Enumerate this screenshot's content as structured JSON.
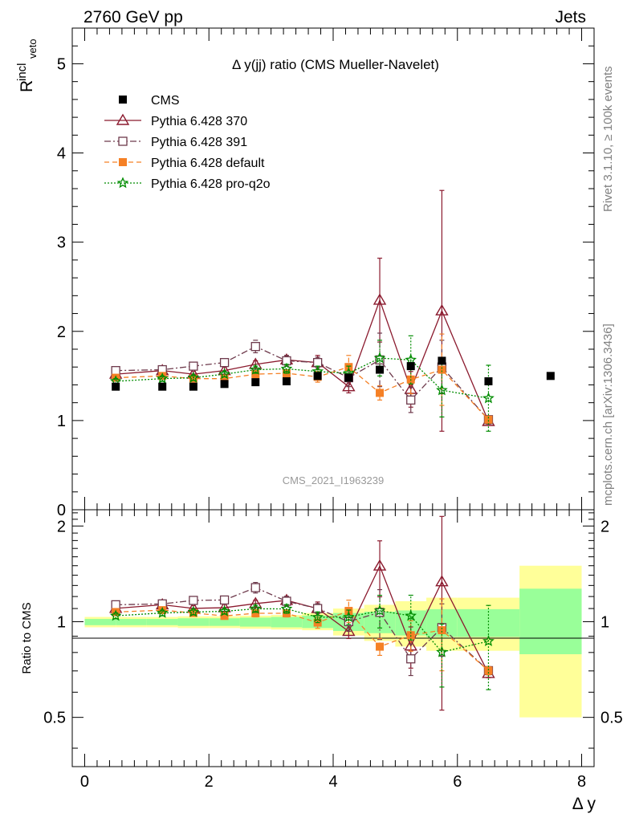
{
  "header": {
    "left": "2760 GeV pp",
    "right": "Jets",
    "side_top": "Rivet 3.1.10, ≥ 100k events",
    "side_bottom": "mcplots.cern.ch [arXiv:1306.3436]"
  },
  "chart_data": {
    "type": "scatter",
    "title": "Δ y(jj) ratio (CMS Mueller-Navelet)",
    "watermark": "CMS_2021_I1963239",
    "xlabel": "Δ y",
    "ylabel": "R^incl_veto",
    "ratio_ylabel": "Ratio to CMS",
    "xlim": [
      -0.2,
      8.2
    ],
    "ylim": [
      0,
      5.4
    ],
    "ratio_ylim": [
      0.35,
      2.25
    ],
    "x_ticks": [
      "0",
      "2",
      "4",
      "6",
      "8"
    ],
    "y_ticks": [
      "0",
      "1",
      "2",
      "3",
      "4",
      "5"
    ],
    "ratio_y_ticks": [
      "0.5",
      "1",
      "2"
    ],
    "legend_position": "top-left",
    "reference": {
      "name": "CMS",
      "color": "#000000",
      "marker": "square",
      "x": [
        0.5,
        1.25,
        1.75,
        2.25,
        2.75,
        3.25,
        3.75,
        4.25,
        4.75,
        5.25,
        5.75,
        6.5,
        7.5
      ],
      "y": [
        1.38,
        1.38,
        1.38,
        1.41,
        1.43,
        1.44,
        1.5,
        1.48,
        1.57,
        1.61,
        1.67,
        1.44,
        1.5
      ],
      "band_edges": [
        0,
        0.5,
        1.0,
        1.5,
        2.0,
        2.5,
        3.0,
        3.5,
        4.0,
        4.5,
        5.0,
        5.5,
        6.0,
        7.0,
        8.0
      ],
      "band_total_lo": [
        0.96,
        0.96,
        0.96,
        0.955,
        0.955,
        0.95,
        0.945,
        0.94,
        0.905,
        0.87,
        0.835,
        0.81,
        0.81,
        0.5
      ],
      "band_total_hi": [
        1.035,
        1.035,
        1.035,
        1.04,
        1.04,
        1.045,
        1.05,
        1.065,
        1.1,
        1.13,
        1.16,
        1.19,
        1.19,
        1.5
      ],
      "band_stat_lo": [
        0.975,
        0.975,
        0.975,
        0.97,
        0.97,
        0.965,
        0.96,
        0.955,
        0.935,
        0.92,
        0.905,
        0.895,
        0.895,
        0.79
      ],
      "band_stat_hi": [
        1.02,
        1.02,
        1.02,
        1.025,
        1.025,
        1.03,
        1.035,
        1.045,
        1.065,
        1.075,
        1.085,
        1.095,
        1.095,
        1.27
      ]
    },
    "series": [
      {
        "name": "Pythia 6.428 370",
        "color": "#8b1a2e",
        "marker": "triangle",
        "dash": "",
        "x": [
          0.5,
          1.25,
          1.75,
          2.25,
          2.75,
          3.25,
          3.75,
          4.25,
          4.75,
          5.25,
          5.75,
          6.5
        ],
        "y": [
          1.52,
          1.56,
          1.52,
          1.56,
          1.63,
          1.68,
          1.65,
          1.38,
          2.35,
          1.35,
          2.23,
          0.99
        ],
        "err": [
          0.03,
          0.03,
          0.03,
          0.04,
          0.04,
          0.05,
          0.08,
          0.07,
          0.47,
          0.2,
          1.35,
          0.03
        ]
      },
      {
        "name": "Pythia 6.428 391",
        "color": "#6e3a4c",
        "marker": "open-square",
        "dash": "8,3,2,3",
        "x": [
          0.5,
          1.25,
          1.75,
          2.25,
          2.75,
          3.25,
          3.75,
          4.25,
          4.75,
          5.25,
          5.75,
          6.5
        ],
        "y": [
          1.56,
          1.57,
          1.61,
          1.65,
          1.83,
          1.67,
          1.65,
          1.48,
          1.68,
          1.23,
          1.6,
          1.01
        ],
        "err": [
          0.03,
          0.03,
          0.03,
          0.04,
          0.07,
          0.06,
          0.06,
          0.1,
          0.3,
          0.14,
          0.3,
          0.03
        ]
      },
      {
        "name": "Pythia 6.428 default",
        "color": "#f58025",
        "marker": "square",
        "dash": "6,4",
        "x": [
          0.5,
          1.25,
          1.75,
          2.25,
          2.75,
          3.25,
          3.75,
          4.25,
          4.75,
          5.25,
          5.75,
          6.5
        ],
        "y": [
          1.48,
          1.5,
          1.47,
          1.47,
          1.52,
          1.53,
          1.49,
          1.6,
          1.31,
          1.46,
          1.57,
          1.01
        ],
        "err": [
          0.03,
          0.03,
          0.03,
          0.03,
          0.04,
          0.04,
          0.06,
          0.13,
          0.08,
          0.16,
          0.4,
          0.03
        ]
      },
      {
        "name": "Pythia 6.428 pro-q2o",
        "color": "#008c00",
        "marker": "star",
        "dash": "2,2",
        "x": [
          0.5,
          1.25,
          1.75,
          2.25,
          2.75,
          3.25,
          3.75,
          4.25,
          4.75,
          5.25,
          5.75,
          6.5
        ],
        "y": [
          1.44,
          1.47,
          1.48,
          1.52,
          1.57,
          1.58,
          1.55,
          1.53,
          1.7,
          1.68,
          1.34,
          1.25
        ],
        "err": [
          0.03,
          0.03,
          0.03,
          0.03,
          0.04,
          0.05,
          0.06,
          0.08,
          0.2,
          0.27,
          0.3,
          0.37
        ]
      }
    ]
  }
}
